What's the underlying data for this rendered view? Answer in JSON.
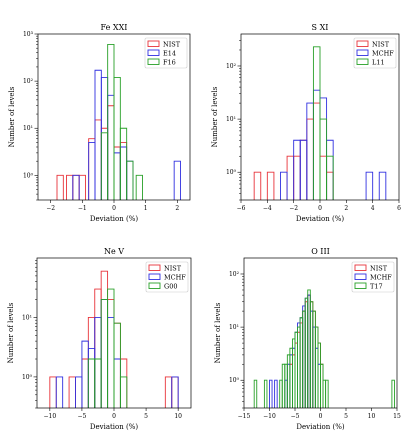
{
  "colors": {
    "s1": "#e8333a",
    "s2": "#3030e0",
    "s3": "#28a028"
  },
  "chart_data": [
    {
      "type": "histogram",
      "title": "Fe XXI",
      "xlabel": "Deviation (%)",
      "ylabel": "Number of levels",
      "yscale": "log",
      "xlim": [
        -2.4,
        2.4
      ],
      "ylim": [
        0.3,
        1000
      ],
      "xticks": [
        -2,
        -1,
        0,
        1,
        2
      ],
      "yticks": [
        1,
        10,
        100,
        1000
      ],
      "ytick_labels": [
        "10⁰",
        "10¹",
        "10²",
        "10³"
      ],
      "legend": "top-right",
      "series": [
        {
          "name": "NIST",
          "color": "#e8333a",
          "bins": [
            [
              -1.8,
              -1.6,
              1
            ],
            [
              -1.5,
              -1.3,
              1
            ],
            [
              -1.3,
              -1.1,
              1
            ],
            [
              -1.1,
              -0.9,
              1
            ],
            [
              -0.8,
              -0.6,
              6
            ],
            [
              -0.6,
              -0.4,
              15
            ],
            [
              -0.4,
              -0.2,
              10
            ],
            [
              -0.2,
              0,
              30
            ],
            [
              0,
              0.2,
              4
            ],
            [
              0.2,
              0.4,
              5
            ]
          ]
        },
        {
          "name": "E14",
          "color": "#3030e0",
          "bins": [
            [
              -1.3,
              -1.1,
              1
            ],
            [
              -0.8,
              -0.6,
              5
            ],
            [
              -0.6,
              -0.4,
              170
            ],
            [
              -0.4,
              -0.2,
              120
            ],
            [
              -0.2,
              0,
              50
            ],
            [
              0,
              0.2,
              3
            ],
            [
              0.2,
              0.4,
              4
            ],
            [
              0.4,
              0.6,
              2
            ],
            [
              1.9,
              2.1,
              2
            ]
          ]
        },
        {
          "name": "F16",
          "color": "#28a028",
          "bins": [
            [
              -0.4,
              -0.2,
              8
            ],
            [
              -0.2,
              0,
              600
            ],
            [
              0,
              0.2,
              120
            ],
            [
              0.2,
              0.4,
              10
            ],
            [
              0.4,
              0.6,
              2
            ],
            [
              0.7,
              0.9,
              1
            ]
          ]
        }
      ]
    },
    {
      "type": "histogram",
      "title": "S XI",
      "xlabel": "Deviation (%)",
      "ylabel": "Number of levels",
      "yscale": "log",
      "xlim": [
        -6,
        6
      ],
      "ylim": [
        0.3,
        400
      ],
      "xticks": [
        -6,
        -4,
        -2,
        0,
        2,
        4,
        6
      ],
      "yticks": [
        1,
        10,
        100
      ],
      "ytick_labels": [
        "10⁰",
        "10¹",
        "10²"
      ],
      "legend": "top-right",
      "series": [
        {
          "name": "NIST",
          "color": "#e8333a",
          "bins": [
            [
              -5,
              -4.5,
              1
            ],
            [
              -4,
              -3.5,
              1
            ],
            [
              -2.5,
              -2,
              2
            ],
            [
              -2,
              -1.5,
              2
            ],
            [
              -1.5,
              -1,
              4
            ],
            [
              -1,
              -0.5,
              10
            ],
            [
              -0.5,
              0,
              20
            ],
            [
              0,
              0.5,
              2
            ],
            [
              0.5,
              1,
              1
            ]
          ]
        },
        {
          "name": "MCHF",
          "color": "#3030e0",
          "bins": [
            [
              -3,
              -2.5,
              1
            ],
            [
              -2,
              -1.5,
              4
            ],
            [
              -1.5,
              -1,
              4
            ],
            [
              -1,
              -0.5,
              20
            ],
            [
              -0.5,
              0,
              35
            ],
            [
              0,
              0.5,
              25
            ],
            [
              0.5,
              1,
              4
            ],
            [
              3.5,
              4,
              1
            ],
            [
              4.5,
              5,
              1
            ]
          ]
        },
        {
          "name": "L11",
          "color": "#28a028",
          "bins": [
            [
              -0.5,
              0,
              230
            ],
            [
              0,
              0.5,
              10
            ],
            [
              0.5,
              1,
              2
            ]
          ]
        }
      ]
    },
    {
      "type": "histogram",
      "title": "Ne V",
      "xlabel": "Deviation (%)",
      "ylabel": "Number of levels",
      "yscale": "log",
      "xlim": [
        -12,
        12
      ],
      "ylim": [
        0.3,
        100
      ],
      "xticks": [
        -10,
        -5,
        0,
        5,
        10
      ],
      "yticks": [
        1,
        10
      ],
      "ytick_labels": [
        "10⁰",
        "10¹"
      ],
      "legend": "top-right",
      "series": [
        {
          "name": "NIST",
          "color": "#e8333a",
          "bins": [
            [
              -10,
              -9,
              1
            ],
            [
              -7,
              -6,
              1
            ],
            [
              -5,
              -4,
              2
            ],
            [
              -4,
              -3,
              10
            ],
            [
              -3,
              -2,
              30
            ],
            [
              -2,
              -1,
              60
            ],
            [
              -1,
              0,
              20
            ],
            [
              0,
              1,
              8
            ],
            [
              1,
              2,
              2
            ],
            [
              8,
              9,
              1
            ],
            [
              9,
              10,
              1
            ]
          ]
        },
        {
          "name": "MCHF",
          "color": "#3030e0",
          "bins": [
            [
              -9,
              -8,
              1
            ],
            [
              -6,
              -5,
              1
            ],
            [
              -5,
              -4,
              4
            ],
            [
              -4,
              -3,
              3
            ],
            [
              -3,
              -2,
              10
            ],
            [
              -2,
              -1,
              20
            ],
            [
              -1,
              0,
              10
            ],
            [
              0,
              1,
              2
            ],
            [
              9,
              10,
              1
            ]
          ]
        },
        {
          "name": "G00",
          "color": "#28a028",
          "bins": [
            [
              -4,
              -3,
              2
            ],
            [
              -3,
              -2,
              2
            ],
            [
              -2,
              -1,
              20
            ],
            [
              -1,
              0,
              30
            ],
            [
              0,
              1,
              8
            ],
            [
              1,
              2,
              1
            ]
          ]
        }
      ]
    },
    {
      "type": "histogram",
      "title": "O III",
      "xlabel": "Deviation (%)",
      "ylabel": "Number of levels",
      "yscale": "log",
      "xlim": [
        -15,
        15
      ],
      "ylim": [
        0.3,
        200
      ],
      "xticks": [
        -15,
        -10,
        -5,
        0,
        5,
        10,
        15
      ],
      "yticks": [
        1,
        10,
        100
      ],
      "ytick_labels": [
        "10⁰",
        "10¹",
        "10²"
      ],
      "legend": "top-right",
      "series": [
        {
          "name": "NIST",
          "color": "#e8333a",
          "bins": [
            [
              -6,
              -5.5,
              2
            ],
            [
              -5.5,
              -5,
              3
            ],
            [
              -5,
              -4.5,
              5
            ],
            [
              -4.5,
              -4,
              8
            ],
            [
              -4,
              -3.5,
              12
            ],
            [
              -3.5,
              -3,
              20
            ],
            [
              -3,
              -2.5,
              30
            ],
            [
              -2.5,
              -2,
              40
            ],
            [
              -2,
              -1.5,
              30
            ],
            [
              -1.5,
              -1,
              20
            ],
            [
              -1,
              -0.5,
              10
            ],
            [
              -0.5,
              0,
              5
            ],
            [
              0,
              0.5,
              2
            ]
          ]
        },
        {
          "name": "MCHF",
          "color": "#3030e0",
          "bins": [
            [
              -10,
              -9.5,
              1
            ],
            [
              -9,
              -8.5,
              1
            ],
            [
              -7,
              -6.5,
              1
            ],
            [
              -6.5,
              -6,
              2
            ],
            [
              -6,
              -5.5,
              3
            ],
            [
              -5.5,
              -5,
              4
            ],
            [
              -5,
              -4.5,
              8
            ],
            [
              -4.5,
              -4,
              12
            ],
            [
              -4,
              -3.5,
              15
            ],
            [
              -3.5,
              -3,
              25
            ],
            [
              -3,
              -2.5,
              35
            ],
            [
              -2.5,
              -2,
              40
            ],
            [
              -2,
              -1.5,
              20
            ],
            [
              -1.5,
              -1,
              10
            ],
            [
              -1,
              -0.5,
              4
            ],
            [
              -0.5,
              0,
              2
            ]
          ]
        },
        {
          "name": "T17",
          "color": "#28a028",
          "bins": [
            [
              -13,
              -12.5,
              1
            ],
            [
              -11,
              -10.5,
              1
            ],
            [
              -8,
              -7.5,
              1
            ],
            [
              -7.5,
              -7,
              2
            ],
            [
              -7,
              -6.5,
              2
            ],
            [
              -6.5,
              -6,
              3
            ],
            [
              -6,
              -5.5,
              4
            ],
            [
              -5.5,
              -5,
              6
            ],
            [
              -5,
              -4.5,
              8
            ],
            [
              -4.5,
              -4,
              10
            ],
            [
              -4,
              -3.5,
              15
            ],
            [
              -3.5,
              -3,
              20
            ],
            [
              -3,
              -2.5,
              35
            ],
            [
              -2.5,
              -2,
              50
            ],
            [
              -2,
              -1.5,
              30
            ],
            [
              -1.5,
              -1,
              20
            ],
            [
              -1,
              -0.5,
              10
            ],
            [
              -0.5,
              0,
              5
            ],
            [
              0,
              0.5,
              2
            ],
            [
              0.5,
              1,
              1
            ],
            [
              1,
              1.5,
              1
            ],
            [
              14,
              14.5,
              1
            ]
          ]
        }
      ]
    }
  ]
}
